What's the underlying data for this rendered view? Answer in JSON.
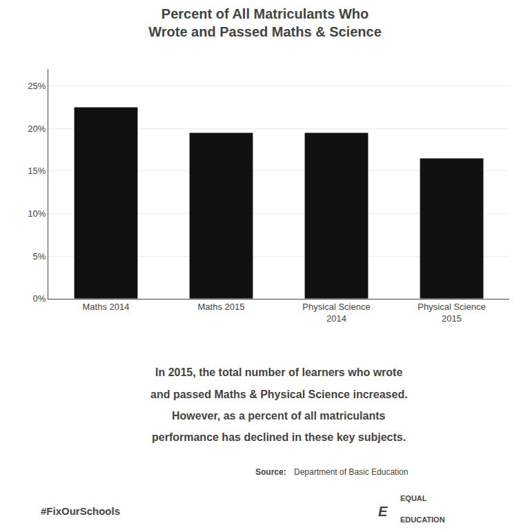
{
  "chart_data": {
    "type": "bar",
    "title": "Percent of All Matriculants Who\nWrote and Passed Maths & Science",
    "categories": [
      "Maths 2014",
      "Maths 2015",
      "Physical Science\n2014",
      "Physical Science\n2015"
    ],
    "values": [
      22.5,
      19.5,
      19.5,
      16.5
    ],
    "color": "#111111",
    "ylim": [
      0,
      27
    ],
    "yticks": [
      {
        "value": 0,
        "label": "0%"
      },
      {
        "value": 5,
        "label": "5%"
      },
      {
        "value": 10,
        "label": "10%"
      },
      {
        "value": 15,
        "label": "15%"
      },
      {
        "value": 20,
        "label": "20%"
      },
      {
        "value": 25,
        "label": "25%"
      }
    ],
    "grid": true,
    "annotations": [
      "In 2015, the total number of learners who wrote",
      "and passed Maths & Physical Science increased.",
      "However, as a percent of all matriculants",
      "performance has declined in these key subjects.",
      "Source:",
      "Department of Basic Education",
      "#FixOurSchools",
      "E",
      "EQUAL",
      "EDUCATION"
    ]
  }
}
